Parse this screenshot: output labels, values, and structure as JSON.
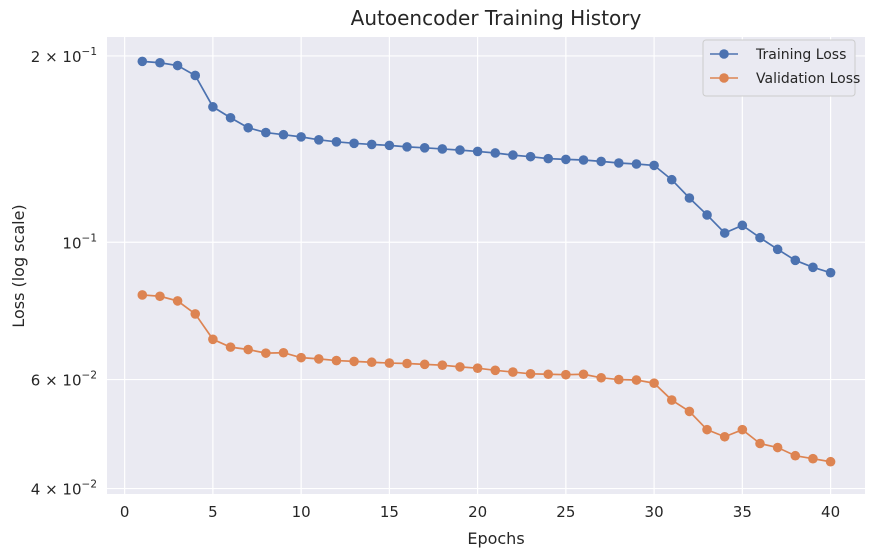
{
  "chart_data": {
    "type": "line",
    "title": "Autoencoder Training History",
    "xlabel": "Epochs",
    "ylabel": "Loss (log scale)",
    "yscale": "log",
    "xlim": [
      -1,
      41.95
    ],
    "ylim": [
      0.0392,
      0.2146
    ],
    "grid": true,
    "legend_position": "top-right",
    "x_ticks": [
      0,
      5,
      10,
      15,
      20,
      25,
      30,
      35,
      40
    ],
    "y_ticks": [
      {
        "value": 0.2,
        "base": "2 × 10",
        "exp": "−1"
      },
      {
        "value": 0.1,
        "base": "10",
        "exp": "−1"
      },
      {
        "value": 0.06,
        "base": "6 × 10",
        "exp": "−2"
      },
      {
        "value": 0.04,
        "base": "4 × 10",
        "exp": "−2"
      }
    ],
    "x": [
      1,
      2,
      3,
      4,
      5,
      6,
      7,
      8,
      9,
      10,
      11,
      12,
      13,
      14,
      15,
      16,
      17,
      18,
      19,
      20,
      21,
      22,
      23,
      24,
      25,
      26,
      27,
      28,
      29,
      30,
      31,
      32,
      33,
      34,
      35,
      36,
      37,
      38,
      39,
      40
    ],
    "series": [
      {
        "name": "Training Loss",
        "color": "#4c72b0",
        "values": [
          0.196,
          0.195,
          0.193,
          0.186,
          0.1655,
          0.1589,
          0.1531,
          0.1504,
          0.1492,
          0.148,
          0.1464,
          0.1453,
          0.1445,
          0.1439,
          0.1434,
          0.1426,
          0.1421,
          0.1415,
          0.1409,
          0.1402,
          0.1394,
          0.1383,
          0.1375,
          0.1365,
          0.1361,
          0.1358,
          0.1351,
          0.1343,
          0.1338,
          0.1331,
          0.1262,
          0.1179,
          0.1107,
          0.1035,
          0.1065,
          0.1017,
          0.0974,
          0.0935,
          0.0911,
          0.0893
        ]
      },
      {
        "name": "Validation Loss",
        "color": "#dd8452",
        "values": [
          0.0822,
          0.0818,
          0.0804,
          0.0766,
          0.0697,
          0.0677,
          0.0671,
          0.0662,
          0.0663,
          0.0651,
          0.0648,
          0.0644,
          0.0642,
          0.064,
          0.0638,
          0.0637,
          0.0635,
          0.0633,
          0.0629,
          0.0626,
          0.0621,
          0.0617,
          0.0613,
          0.0612,
          0.0611,
          0.0612,
          0.0604,
          0.06,
          0.0599,
          0.0592,
          0.0556,
          0.0533,
          0.0498,
          0.0485,
          0.0498,
          0.0473,
          0.0466,
          0.0452,
          0.0447,
          0.0442
        ]
      }
    ]
  }
}
